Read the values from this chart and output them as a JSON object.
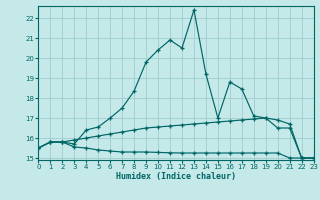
{
  "xlabel": "Humidex (Indice chaleur)",
  "bg_color": "#c5e8e8",
  "grid_color": "#9ecece",
  "line_color": "#006666",
  "xlim": [
    0,
    23
  ],
  "ylim": [
    14.9,
    22.6
  ],
  "yticks": [
    15,
    16,
    17,
    18,
    19,
    20,
    21,
    22
  ],
  "xticks": [
    0,
    1,
    2,
    3,
    4,
    5,
    6,
    7,
    8,
    9,
    10,
    11,
    12,
    13,
    14,
    15,
    16,
    17,
    18,
    19,
    20,
    21,
    22,
    23
  ],
  "series": [
    {
      "x": [
        0,
        1,
        2,
        3,
        4,
        5,
        6,
        7,
        8,
        9,
        10,
        11,
        12,
        13,
        14,
        15,
        16,
        17,
        18,
        19,
        20,
        21,
        22,
        23
      ],
      "y": [
        15.5,
        15.8,
        15.8,
        15.55,
        15.5,
        15.4,
        15.35,
        15.3,
        15.3,
        15.3,
        15.28,
        15.26,
        15.25,
        15.25,
        15.25,
        15.25,
        15.25,
        15.25,
        15.25,
        15.25,
        15.25,
        15.0,
        15.0,
        15.0
      ]
    },
    {
      "x": [
        0,
        1,
        2,
        3,
        4,
        5,
        6,
        7,
        8,
        9,
        10,
        11,
        12,
        13,
        14,
        15,
        16,
        17,
        18,
        19,
        20,
        21,
        22,
        23
      ],
      "y": [
        15.5,
        15.8,
        15.8,
        15.9,
        16.0,
        16.1,
        16.2,
        16.3,
        16.4,
        16.5,
        16.55,
        16.6,
        16.65,
        16.7,
        16.75,
        16.8,
        16.85,
        16.9,
        16.95,
        17.0,
        16.9,
        16.7,
        15.0,
        15.0
      ]
    },
    {
      "x": [
        0,
        1,
        2,
        3,
        4,
        5,
        6,
        7,
        8,
        9,
        10,
        11,
        12,
        13,
        14,
        15,
        16,
        17,
        18,
        19,
        20,
        21,
        22,
        23
      ],
      "y": [
        15.5,
        15.8,
        15.8,
        15.7,
        16.4,
        16.55,
        17.0,
        17.5,
        18.35,
        19.8,
        20.4,
        20.9,
        20.5,
        22.4,
        19.2,
        17.0,
        18.8,
        18.45,
        17.1,
        17.0,
        16.5,
        16.5,
        15.0,
        15.0
      ]
    }
  ]
}
